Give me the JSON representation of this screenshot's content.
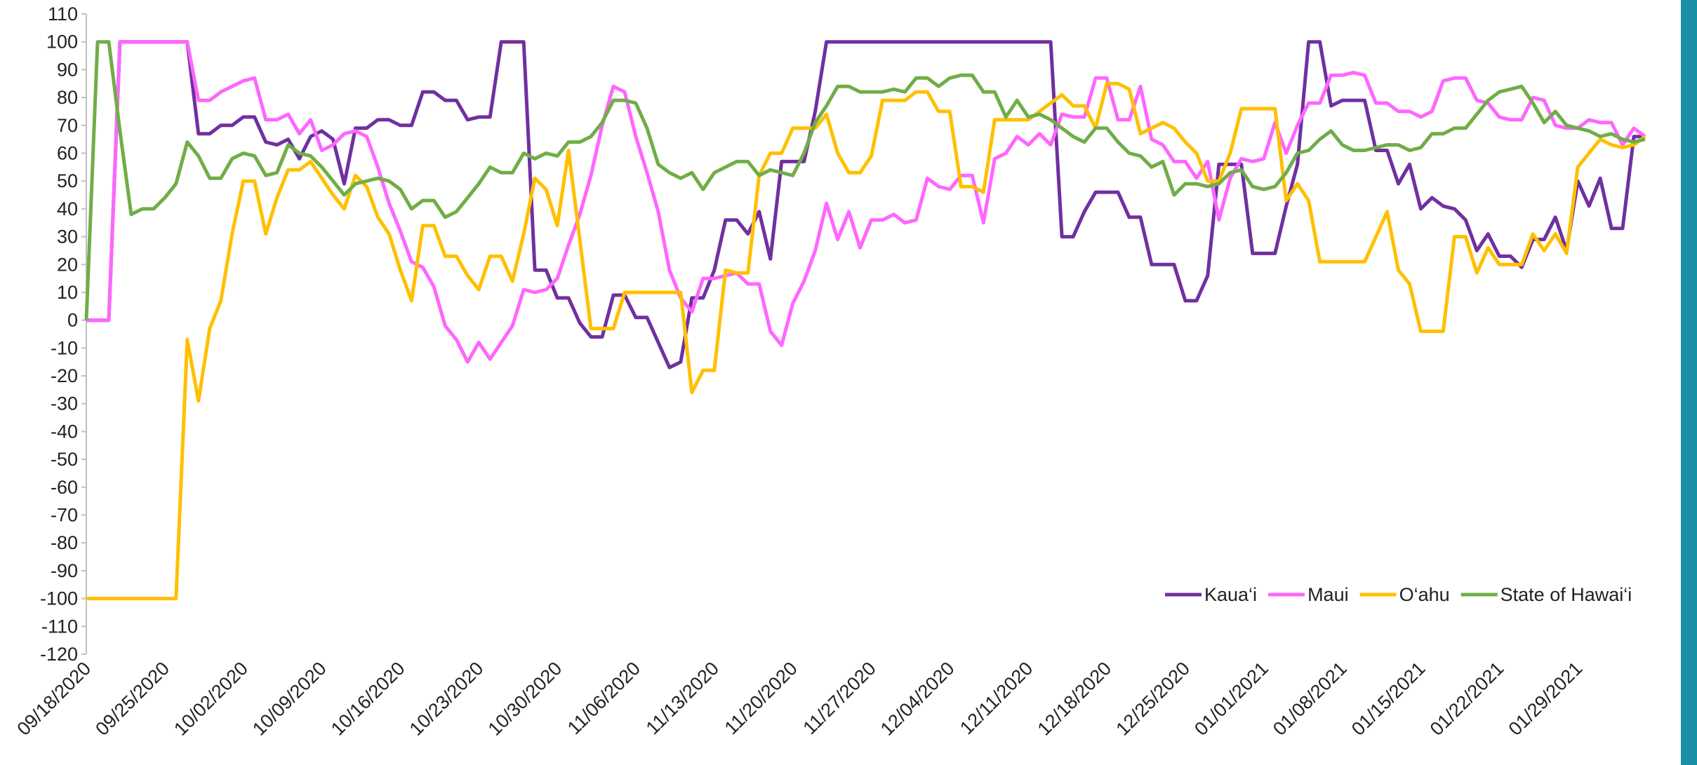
{
  "chart_data": {
    "type": "line",
    "categories": [
      "09/18/2020",
      null,
      null,
      null,
      null,
      null,
      null,
      "09/25/2020",
      null,
      null,
      null,
      null,
      null,
      null,
      "10/02/2020",
      null,
      null,
      null,
      null,
      null,
      null,
      "10/09/2020",
      null,
      null,
      null,
      null,
      null,
      null,
      "10/16/2020",
      null,
      null,
      null,
      null,
      null,
      null,
      "10/23/2020",
      null,
      null,
      null,
      null,
      null,
      null,
      "10/30/2020",
      null,
      null,
      null,
      null,
      null,
      null,
      "11/06/2020",
      null,
      null,
      null,
      null,
      null,
      null,
      "11/13/2020",
      null,
      null,
      null,
      null,
      null,
      null,
      "11/20/2020",
      null,
      null,
      null,
      null,
      null,
      null,
      "11/27/2020",
      null,
      null,
      null,
      null,
      null,
      null,
      "12/04/2020",
      null,
      null,
      null,
      null,
      null,
      null,
      "12/11/2020",
      null,
      null,
      null,
      null,
      null,
      null,
      "12/18/2020",
      null,
      null,
      null,
      null,
      null,
      null,
      "12/25/2020",
      null,
      null,
      null,
      null,
      null,
      null,
      "01/01/2021",
      null,
      null,
      null,
      null,
      null,
      null,
      "01/08/2021",
      null,
      null,
      null,
      null,
      null,
      null,
      "01/15/2021",
      null,
      null,
      null,
      null,
      null,
      null,
      "01/22/2021",
      null,
      null,
      null,
      null,
      null,
      null,
      "01/29/2021",
      null,
      null,
      null,
      null,
      null,
      null
    ],
    "series": [
      {
        "name": "Kaua‘i",
        "color": "#7030a0",
        "values": [
          0,
          0,
          0,
          100,
          100,
          100,
          100,
          100,
          100,
          100,
          67,
          67,
          70,
          70,
          73,
          73,
          64,
          63,
          65,
          58,
          66,
          68,
          65,
          49,
          69,
          69,
          72,
          72,
          70,
          70,
          82,
          82,
          79,
          79,
          72,
          73,
          73,
          100,
          100,
          100,
          18,
          18,
          8,
          8,
          -1,
          -6,
          -6,
          9,
          9,
          1,
          1,
          -8,
          -17,
          -15,
          8,
          8,
          18,
          36,
          36,
          31,
          39,
          22,
          57,
          57,
          57,
          75,
          100,
          100,
          100,
          100,
          100,
          100,
          100,
          100,
          100,
          100,
          100,
          100,
          100,
          100,
          100,
          100,
          100,
          100,
          100,
          100,
          100,
          30,
          30,
          39,
          46,
          46,
          46,
          37,
          37,
          20,
          20,
          20,
          7,
          7,
          16,
          56,
          56,
          56,
          24,
          24,
          24,
          41,
          56,
          100,
          100,
          77,
          79,
          79,
          79,
          61,
          61,
          49,
          56,
          40,
          44,
          41,
          40,
          36,
          25,
          31,
          23,
          23,
          19,
          29,
          29,
          37,
          25,
          50,
          41,
          51,
          33,
          33,
          66,
          66
        ]
      },
      {
        "name": "Maui",
        "color": "#ff66ff",
        "values": [
          0,
          0,
          0,
          100,
          100,
          100,
          100,
          100,
          100,
          100,
          79,
          79,
          82,
          84,
          86,
          87,
          72,
          72,
          74,
          67,
          72,
          61,
          63,
          67,
          68,
          66,
          55,
          42,
          32,
          21,
          19,
          12,
          -2,
          -7,
          -15,
          -8,
          -14,
          -8,
          -2,
          11,
          10,
          11,
          15,
          27,
          38,
          52,
          70,
          84,
          82,
          66,
          53,
          39,
          18,
          8,
          3,
          15,
          15,
          16,
          17,
          13,
          13,
          -4,
          -9,
          6,
          14,
          25,
          42,
          29,
          39,
          26,
          36,
          36,
          38,
          35,
          36,
          51,
          48,
          47,
          52,
          52,
          35,
          58,
          60,
          66,
          63,
          67,
          63,
          74,
          73,
          73,
          87,
          87,
          72,
          72,
          84,
          65,
          63,
          57,
          57,
          51,
          57,
          36,
          51,
          58,
          57,
          58,
          71,
          60,
          70,
          78,
          78,
          88,
          88,
          89,
          88,
          78,
          78,
          75,
          75,
          73,
          75,
          86,
          87,
          87,
          79,
          78,
          73,
          72,
          72,
          80,
          79,
          70,
          69,
          69,
          72,
          71,
          71,
          63,
          69,
          66
        ]
      },
      {
        "name": "O‘ahu",
        "color": "#ffc000",
        "values": [
          -100,
          -100,
          -100,
          -100,
          -100,
          -100,
          -100,
          -100,
          -100,
          -7,
          -29,
          -3,
          7,
          31,
          50,
          50,
          31,
          44,
          54,
          54,
          57,
          51,
          45,
          40,
          52,
          48,
          37,
          31,
          18,
          7,
          34,
          34,
          23,
          23,
          16,
          11,
          23,
          23,
          14,
          31,
          51,
          47,
          34,
          61,
          29,
          -3,
          -3,
          -3,
          10,
          10,
          10,
          10,
          10,
          10,
          -26,
          -18,
          -18,
          18,
          17,
          17,
          52,
          60,
          60,
          69,
          69,
          69,
          74,
          60,
          53,
          53,
          59,
          79,
          79,
          79,
          82,
          82,
          75,
          75,
          48,
          48,
          46,
          72,
          72,
          72,
          72,
          75,
          78,
          81,
          77,
          77,
          69,
          85,
          85,
          83,
          67,
          69,
          71,
          69,
          64,
          60,
          50,
          50,
          60,
          76,
          76,
          76,
          76,
          43,
          49,
          43,
          21,
          21,
          21,
          21,
          21,
          30,
          39,
          18,
          13,
          -4,
          -4,
          -4,
          30,
          30,
          17,
          26,
          20,
          20,
          20,
          31,
          25,
          31,
          24,
          55,
          60,
          65,
          63,
          62,
          63,
          66
        ]
      },
      {
        "name": "State of Hawai‘i",
        "color": "#70ad47",
        "values": [
          0,
          100,
          100,
          68,
          38,
          40,
          40,
          44,
          49,
          64,
          59,
          51,
          51,
          58,
          60,
          59,
          52,
          53,
          63,
          60,
          59,
          55,
          50,
          45,
          49,
          50,
          51,
          50,
          47,
          40,
          43,
          43,
          37,
          39,
          44,
          49,
          55,
          53,
          53,
          60,
          58,
          60,
          59,
          64,
          64,
          66,
          71,
          79,
          79,
          78,
          69,
          56,
          53,
          51,
          53,
          47,
          53,
          55,
          57,
          57,
          52,
          54,
          53,
          52,
          60,
          71,
          77,
          84,
          84,
          82,
          82,
          82,
          83,
          82,
          87,
          87,
          84,
          87,
          88,
          88,
          82,
          82,
          73,
          79,
          73,
          74,
          72,
          69,
          66,
          64,
          69,
          69,
          64,
          60,
          59,
          55,
          57,
          45,
          49,
          49,
          48,
          49,
          53,
          54,
          48,
          47,
          48,
          53,
          60,
          61,
          65,
          68,
          63,
          61,
          61,
          62,
          63,
          63,
          61,
          62,
          67,
          67,
          69,
          69,
          74,
          79,
          82,
          83,
          84,
          78,
          71,
          75,
          70,
          69,
          68,
          66,
          67,
          65,
          64,
          65
        ]
      }
    ],
    "ylim": [
      -120,
      110
    ],
    "yticks": [
      -120,
      -110,
      -100,
      -90,
      -80,
      -70,
      -60,
      -50,
      -40,
      -30,
      -20,
      -10,
      0,
      10,
      20,
      30,
      40,
      50,
      60,
      70,
      80,
      90,
      100,
      110
    ],
    "legend": "bottom-right"
  }
}
